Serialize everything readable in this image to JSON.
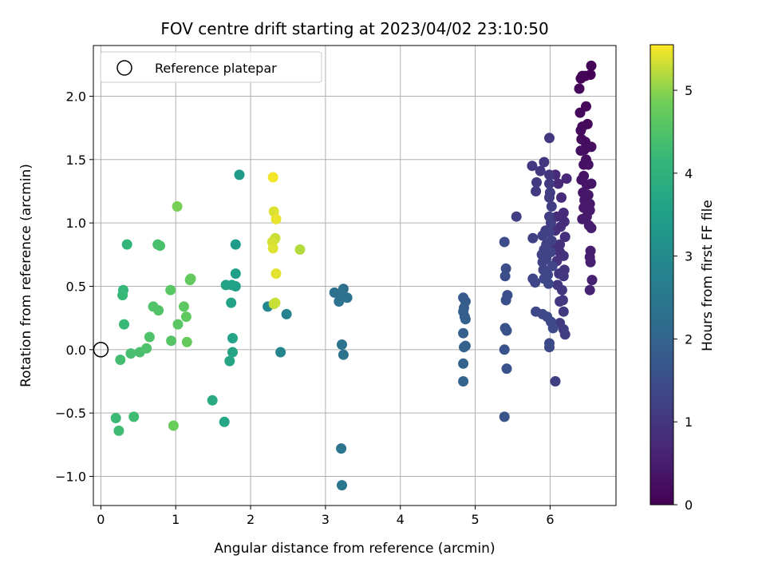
{
  "chart_data": {
    "type": "scatter",
    "title": "FOV centre drift starting at 2023/04/02 23:10:50",
    "xlabel": "Angular distance from reference (arcmin)",
    "ylabel": "Rotation from reference (arcmin)",
    "xlim": [
      -0.1,
      6.88
    ],
    "ylim": [
      -1.23,
      2.4
    ],
    "xticks": [
      0,
      1,
      2,
      3,
      4,
      5,
      6
    ],
    "xtick_labels": [
      "0",
      "1",
      "2",
      "3",
      "4",
      "5",
      "6"
    ],
    "yticks": [
      -1.0,
      -0.5,
      0.0,
      0.5,
      1.0,
      1.5,
      2.0
    ],
    "ytick_labels": [
      "−1.0",
      "−0.5",
      "0.0",
      "0.5",
      "1.0",
      "1.5",
      "2.0"
    ],
    "grid": true,
    "colormap": "viridis",
    "colorbar": {
      "label": "Hours from first FF file",
      "range": [
        0,
        5.55
      ],
      "ticks": [
        0,
        1,
        2,
        3,
        4,
        5
      ],
      "tick_labels": [
        "0",
        "1",
        "2",
        "3",
        "4",
        "5"
      ]
    },
    "legend": {
      "position": "upper-left",
      "entries": [
        {
          "label": "Reference platepar",
          "marker": "open-circle"
        }
      ]
    },
    "reference_point": {
      "x": 0.0,
      "y": 0.0
    },
    "points": [
      [
        6.55,
        2.24,
        0.05
      ],
      [
        6.43,
        2.16,
        0.05
      ],
      [
        6.47,
        2.16,
        0.06
      ],
      [
        6.54,
        2.17,
        0.04
      ],
      [
        6.41,
        2.14,
        0.08
      ],
      [
        6.39,
        2.06,
        0.1
      ],
      [
        6.48,
        1.92,
        0.12
      ],
      [
        6.4,
        1.87,
        0.14
      ],
      [
        6.5,
        1.78,
        0.15
      ],
      [
        6.43,
        1.76,
        0.16
      ],
      [
        6.41,
        1.73,
        0.18
      ],
      [
        6.42,
        1.66,
        0.2
      ],
      [
        6.47,
        1.64,
        0.22
      ],
      [
        6.46,
        1.58,
        0.22
      ],
      [
        6.55,
        1.6,
        0.24
      ],
      [
        6.41,
        1.57,
        0.26
      ],
      [
        6.48,
        1.5,
        0.28
      ],
      [
        6.45,
        1.46,
        0.3
      ],
      [
        6.51,
        1.46,
        0.3
      ],
      [
        6.45,
        1.37,
        0.32
      ],
      [
        6.42,
        1.34,
        0.34
      ],
      [
        6.49,
        1.3,
        0.36
      ],
      [
        6.55,
        1.31,
        0.36
      ],
      [
        6.44,
        1.24,
        0.38
      ],
      [
        6.51,
        1.22,
        0.4
      ],
      [
        6.46,
        1.18,
        0.4
      ],
      [
        6.53,
        1.15,
        0.42
      ],
      [
        6.45,
        1.12,
        0.44
      ],
      [
        6.53,
        1.1,
        0.44
      ],
      [
        6.49,
        1.05,
        0.46
      ],
      [
        6.43,
        1.03,
        0.48
      ],
      [
        6.52,
        0.98,
        0.5
      ],
      [
        6.55,
        0.96,
        0.5
      ],
      [
        6.54,
        0.78,
        0.52
      ],
      [
        6.53,
        0.73,
        0.54
      ],
      [
        6.54,
        0.69,
        0.56
      ],
      [
        6.56,
        0.55,
        0.58
      ],
      [
        6.53,
        0.47,
        0.6
      ],
      [
        6.22,
        1.35,
        0.7
      ],
      [
        6.11,
        1.31,
        0.72
      ],
      [
        6.07,
        1.38,
        0.74
      ],
      [
        6.15,
        1.2,
        0.76
      ],
      [
        6.18,
        1.08,
        0.78
      ],
      [
        6.09,
        1.05,
        0.78
      ],
      [
        6.19,
        1.01,
        0.8
      ],
      [
        6.14,
        0.97,
        0.82
      ],
      [
        6.07,
        0.94,
        0.82
      ],
      [
        6.2,
        0.89,
        0.84
      ],
      [
        6.13,
        0.83,
        0.86
      ],
      [
        6.03,
        0.8,
        0.86
      ],
      [
        6.13,
        0.77,
        0.88
      ],
      [
        6.18,
        0.74,
        0.9
      ],
      [
        6.09,
        0.7,
        0.92
      ],
      [
        6.19,
        0.63,
        0.94
      ],
      [
        6.12,
        0.6,
        0.96
      ],
      [
        6.18,
        0.58,
        0.98
      ],
      [
        6.1,
        0.51,
        1.0
      ],
      [
        6.16,
        0.47,
        1.02
      ],
      [
        6.17,
        0.39,
        1.04
      ],
      [
        6.13,
        0.38,
        1.06
      ],
      [
        6.18,
        0.3,
        1.08
      ],
      [
        6.13,
        0.21,
        1.1
      ],
      [
        6.18,
        0.16,
        1.12
      ],
      [
        6.2,
        0.12,
        1.14
      ],
      [
        6.07,
        -0.25,
        1.16
      ],
      [
        5.99,
        1.67,
        1.0
      ],
      [
        5.92,
        1.48,
        1.02
      ],
      [
        5.87,
        1.41,
        1.04
      ],
      [
        5.99,
        1.38,
        1.04
      ],
      [
        5.76,
        1.45,
        1.06
      ],
      [
        5.82,
        1.32,
        1.08
      ],
      [
        5.99,
        1.31,
        1.08
      ],
      [
        5.81,
        1.25,
        1.1
      ],
      [
        6.0,
        1.24,
        1.12
      ],
      [
        5.99,
        1.2,
        1.12
      ],
      [
        6.02,
        1.13,
        1.14
      ],
      [
        5.55,
        1.05,
        1.16
      ],
      [
        5.99,
        1.05,
        1.16
      ],
      [
        6.01,
        1.0,
        1.18
      ],
      [
        5.94,
        0.94,
        1.18
      ],
      [
        5.99,
        0.93,
        1.2
      ],
      [
        5.9,
        0.9,
        1.2
      ],
      [
        5.77,
        0.88,
        1.22
      ],
      [
        6.02,
        0.86,
        1.22
      ],
      [
        5.95,
        0.83,
        1.24
      ],
      [
        5.92,
        0.79,
        1.24
      ],
      [
        6.01,
        0.77,
        1.26
      ],
      [
        5.89,
        0.75,
        1.26
      ],
      [
        5.95,
        0.72,
        1.28
      ],
      [
        5.9,
        0.69,
        1.28
      ],
      [
        6.03,
        0.66,
        1.3
      ],
      [
        5.91,
        0.63,
        1.3
      ],
      [
        5.97,
        0.59,
        1.32
      ],
      [
        5.77,
        0.56,
        1.32
      ],
      [
        5.92,
        0.56,
        1.34
      ],
      [
        5.8,
        0.53,
        1.34
      ],
      [
        5.98,
        0.52,
        1.36
      ],
      [
        5.81,
        0.3,
        1.36
      ],
      [
        5.9,
        0.28,
        1.38
      ],
      [
        5.96,
        0.26,
        1.38
      ],
      [
        6.01,
        0.22,
        1.4
      ],
      [
        6.04,
        0.17,
        1.4
      ],
      [
        5.99,
        0.05,
        1.42
      ],
      [
        5.99,
        0.02,
        1.42
      ],
      [
        5.39,
        0.85,
        1.46
      ],
      [
        5.41,
        0.64,
        1.48
      ],
      [
        5.4,
        0.58,
        1.5
      ],
      [
        5.43,
        0.43,
        1.52
      ],
      [
        5.41,
        0.39,
        1.54
      ],
      [
        5.4,
        0.17,
        1.56
      ],
      [
        5.42,
        0.15,
        1.58
      ],
      [
        5.39,
        0.0,
        1.6
      ],
      [
        5.42,
        -0.15,
        1.62
      ],
      [
        5.39,
        -0.53,
        1.64
      ],
      [
        4.84,
        0.41,
        1.8
      ],
      [
        4.87,
        0.38,
        1.82
      ],
      [
        4.85,
        0.33,
        1.84
      ],
      [
        4.84,
        0.3,
        1.86
      ],
      [
        4.86,
        0.26,
        1.88
      ],
      [
        4.87,
        0.24,
        1.9
      ],
      [
        4.84,
        0.13,
        1.92
      ],
      [
        4.87,
        0.03,
        1.94
      ],
      [
        4.85,
        0.02,
        1.96
      ],
      [
        4.84,
        -0.11,
        1.98
      ],
      [
        4.84,
        -0.25,
        2.0
      ],
      [
        3.24,
        0.48,
        2.3
      ],
      [
        3.12,
        0.45,
        2.32
      ],
      [
        3.29,
        0.41,
        2.34
      ],
      [
        3.18,
        0.38,
        2.36
      ],
      [
        3.21,
        0.41,
        2.36
      ],
      [
        3.22,
        0.04,
        2.38
      ],
      [
        3.24,
        -0.04,
        2.4
      ],
      [
        3.21,
        -0.78,
        2.42
      ],
      [
        3.22,
        -1.07,
        2.44
      ],
      [
        2.48,
        0.28,
        2.8
      ],
      [
        2.4,
        -0.02,
        2.85
      ],
      [
        2.23,
        0.34,
        2.95
      ],
      [
        1.85,
        1.38,
        3.4
      ],
      [
        1.8,
        0.83,
        3.45
      ],
      [
        1.8,
        0.6,
        3.5
      ],
      [
        1.8,
        0.5,
        3.52
      ],
      [
        1.75,
        0.51,
        3.55
      ],
      [
        1.67,
        0.51,
        3.58
      ],
      [
        1.74,
        0.37,
        3.6
      ],
      [
        1.76,
        0.09,
        3.62
      ],
      [
        1.76,
        -0.02,
        3.64
      ],
      [
        1.72,
        -0.09,
        3.66
      ],
      [
        1.65,
        -0.57,
        3.7
      ],
      [
        1.49,
        -0.4,
        3.8
      ],
      [
        0.35,
        0.83,
        4.1
      ],
      [
        0.3,
        0.47,
        4.15
      ],
      [
        0.29,
        0.43,
        4.18
      ],
      [
        0.31,
        0.2,
        4.2
      ],
      [
        0.2,
        -0.54,
        4.25
      ],
      [
        0.24,
        -0.64,
        4.28
      ],
      [
        0.44,
        -0.53,
        4.3
      ],
      [
        0.26,
        -0.08,
        4.35
      ],
      [
        0.4,
        -0.03,
        4.38
      ],
      [
        0.52,
        -0.02,
        4.4
      ],
      [
        0.61,
        0.01,
        4.45
      ],
      [
        0.65,
        0.1,
        4.48
      ],
      [
        0.7,
        0.34,
        4.5
      ],
      [
        0.77,
        0.31,
        4.52
      ],
      [
        0.76,
        0.83,
        4.4
      ],
      [
        0.79,
        0.82,
        4.42
      ],
      [
        0.94,
        0.07,
        4.55
      ],
      [
        0.93,
        0.47,
        4.6
      ],
      [
        1.03,
        0.2,
        4.62
      ],
      [
        1.11,
        0.34,
        4.65
      ],
      [
        1.14,
        0.26,
        4.68
      ],
      [
        1.19,
        0.55,
        4.7
      ],
      [
        1.2,
        0.56,
        4.72
      ],
      [
        1.15,
        0.06,
        4.75
      ],
      [
        0.97,
        -0.6,
        4.8
      ],
      [
        1.02,
        1.13,
        4.9
      ],
      [
        2.3,
        1.36,
        5.5
      ],
      [
        2.31,
        1.09,
        5.4
      ],
      [
        2.34,
        1.03,
        5.45
      ],
      [
        2.32,
        0.87,
        5.35
      ],
      [
        2.33,
        0.88,
        5.3
      ],
      [
        2.29,
        0.85,
        5.35
      ],
      [
        2.3,
        0.8,
        5.4
      ],
      [
        2.66,
        0.79,
        5.2
      ],
      [
        2.34,
        0.6,
        5.42
      ],
      [
        2.31,
        0.36,
        5.25
      ],
      [
        2.33,
        0.37,
        5.3
      ]
    ]
  }
}
